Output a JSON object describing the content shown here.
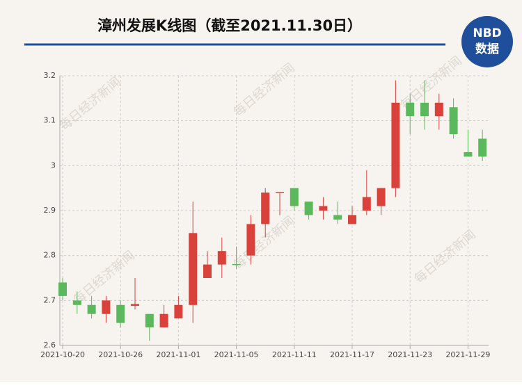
{
  "chart_data": {
    "type": "candlestick",
    "title": "漳州发展K线图（截至2021.11.30日）",
    "logo": {
      "top": "NBD",
      "bottom": "数据"
    },
    "watermark": "每日经济新闻",
    "categories": [
      "2021-10-20",
      null,
      null,
      null,
      "2021-10-26",
      null,
      null,
      null,
      "2021-11-01",
      null,
      null,
      null,
      "2021-11-05",
      null,
      null,
      null,
      "2021-11-11",
      null,
      null,
      null,
      "2021-11-17",
      null,
      null,
      null,
      "2021-11-23",
      null,
      null,
      null,
      "2021-11-29",
      null
    ],
    "open": [
      2.74,
      2.7,
      2.69,
      2.67,
      2.69,
      2.688,
      2.67,
      2.64,
      2.66,
      2.69,
      2.75,
      2.78,
      2.781,
      2.8,
      2.87,
      2.939,
      2.95,
      2.92,
      2.9,
      2.89,
      2.87,
      2.9,
      2.91,
      2.95,
      3.14,
      3.14,
      3.11,
      3.13,
      3.03,
      3.06
    ],
    "high": [
      2.75,
      2.72,
      2.71,
      2.71,
      2.7,
      2.75,
      2.67,
      2.69,
      2.71,
      2.92,
      2.81,
      2.84,
      2.82,
      2.89,
      2.95,
      2.94,
      2.95,
      2.92,
      2.93,
      2.92,
      2.91,
      2.99,
      2.95,
      3.19,
      3.16,
      3.19,
      3.16,
      3.15,
      3.08,
      3.08
    ],
    "low": [
      2.7,
      2.67,
      2.66,
      2.65,
      2.64,
      2.68,
      2.61,
      2.64,
      2.66,
      2.65,
      2.75,
      2.75,
      2.77,
      2.78,
      2.84,
      2.89,
      2.9,
      2.88,
      2.88,
      2.87,
      2.87,
      2.89,
      2.89,
      2.93,
      3.07,
      3.08,
      3.08,
      3.06,
      3.02,
      3.01
    ],
    "close": [
      2.71,
      2.69,
      2.67,
      2.7,
      2.65,
      2.692,
      2.64,
      2.67,
      2.69,
      2.85,
      2.78,
      2.81,
      2.779,
      2.87,
      2.94,
      2.941,
      2.91,
      2.89,
      2.91,
      2.88,
      2.89,
      2.93,
      2.95,
      3.14,
      3.11,
      3.11,
      3.14,
      3.07,
      3.02,
      3.02
    ],
    "up_color": "#d9413a",
    "down_color": "#5cb85c",
    "ylim": [
      2.6,
      3.2
    ],
    "yticks": [
      2.6,
      2.7,
      2.8,
      2.9,
      3,
      3.1,
      3.2
    ],
    "grid": true
  }
}
